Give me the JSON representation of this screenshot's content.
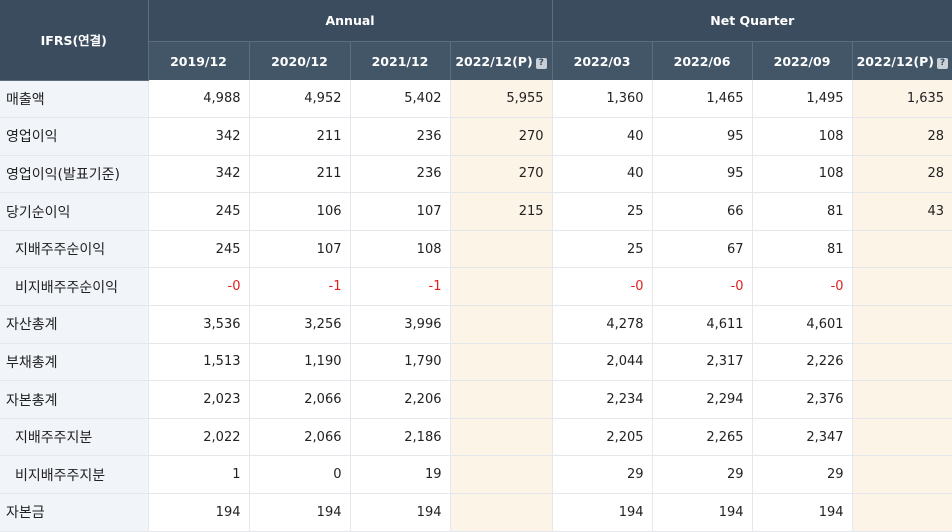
{
  "header": {
    "corner": "IFRS(연결)",
    "group_annual": "Annual",
    "group_quarter": "Net Quarter",
    "columns": [
      "2019/12",
      "2020/12",
      "2021/12",
      "2022/12(P)",
      "2022/03",
      "2022/06",
      "2022/09",
      "2022/12(P)"
    ],
    "help_glyph": "?"
  },
  "rows": [
    {
      "label": "매출액",
      "sub": false,
      "values": [
        "4,988",
        "4,952",
        "5,402",
        "5,955",
        "1,360",
        "1,465",
        "1,495",
        "1,635"
      ]
    },
    {
      "label": "영업이익",
      "sub": false,
      "values": [
        "342",
        "211",
        "236",
        "270",
        "40",
        "95",
        "108",
        "28"
      ]
    },
    {
      "label": "영업이익(발표기준)",
      "sub": false,
      "values": [
        "342",
        "211",
        "236",
        "270",
        "40",
        "95",
        "108",
        "28"
      ]
    },
    {
      "label": "당기순이익",
      "sub": false,
      "values": [
        "245",
        "106",
        "107",
        "215",
        "25",
        "66",
        "81",
        "43"
      ]
    },
    {
      "label": "지배주주순이익",
      "sub": true,
      "values": [
        "245",
        "107",
        "108",
        "",
        "25",
        "67",
        "81",
        ""
      ]
    },
    {
      "label": "비지배주주순이익",
      "sub": true,
      "values": [
        "-0",
        "-1",
        "-1",
        "",
        "-0",
        "-0",
        "-0",
        ""
      ]
    },
    {
      "label": "자산총계",
      "sub": false,
      "values": [
        "3,536",
        "3,256",
        "3,996",
        "",
        "4,278",
        "4,611",
        "4,601",
        ""
      ]
    },
    {
      "label": "부채총계",
      "sub": false,
      "values": [
        "1,513",
        "1,190",
        "1,790",
        "",
        "2,044",
        "2,317",
        "2,226",
        ""
      ]
    },
    {
      "label": "자본총계",
      "sub": false,
      "values": [
        "2,023",
        "2,066",
        "2,206",
        "",
        "2,234",
        "2,294",
        "2,376",
        ""
      ]
    },
    {
      "label": "지배주주지분",
      "sub": true,
      "values": [
        "2,022",
        "2,066",
        "2,186",
        "",
        "2,205",
        "2,265",
        "2,347",
        ""
      ]
    },
    {
      "label": "비지배주주지분",
      "sub": true,
      "values": [
        "1",
        "0",
        "19",
        "",
        "29",
        "29",
        "29",
        ""
      ]
    },
    {
      "label": "자본금",
      "sub": false,
      "values": [
        "194",
        "194",
        "194",
        "",
        "194",
        "194",
        "194",
        ""
      ]
    }
  ],
  "colors": {
    "header_bg": "#3b4c5e",
    "label_bg": "#f1f4f8",
    "projection_bg": "#fcf4e7",
    "negative": "#e02020"
  }
}
